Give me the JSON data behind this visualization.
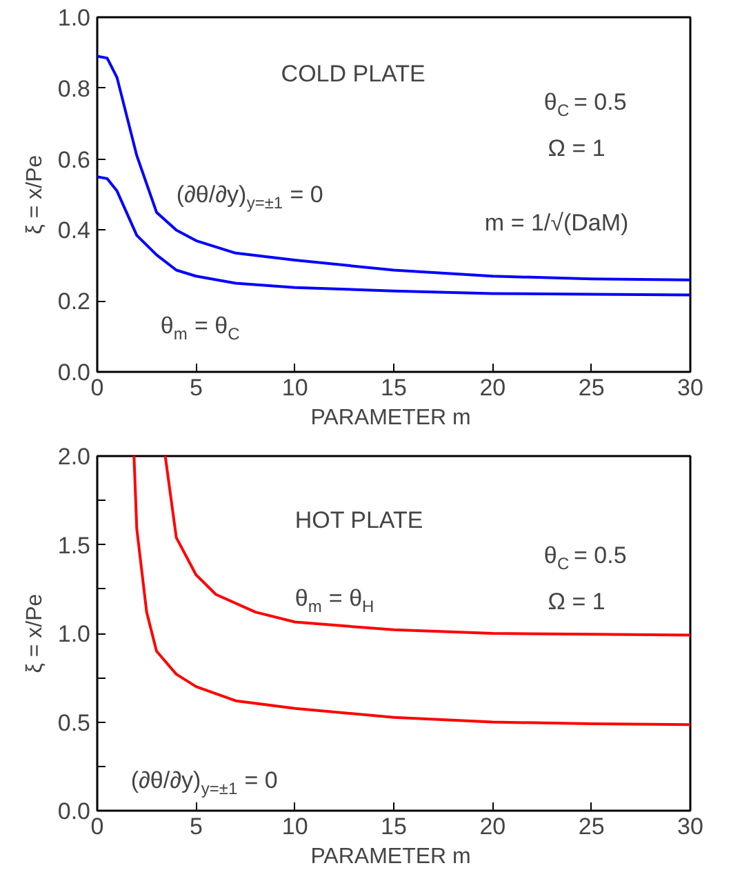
{
  "chart_data": [
    {
      "type": "line",
      "xlabel": "PARAMETER  m",
      "ylabel": "ξ = x/Pe",
      "xlim": [
        0,
        30
      ],
      "ylim": [
        0,
        1.0
      ],
      "xticks": [
        0,
        5,
        10,
        15,
        20,
        25,
        30
      ],
      "yticks": [
        {
          "value": 0,
          "label": "0.0"
        },
        0.2,
        0.4,
        0.6,
        0.8,
        {
          "value": 1,
          "label": "1.0"
        }
      ],
      "grid": false,
      "marker": "none",
      "line_style": "solid",
      "annotations": [
        "COLD  PLATE",
        "θ$_{C}$ = 0.5",
        "Ω = 1",
        "(∂θ/∂y)$_{y=±1}$ = 0",
        "m = 1/√(DaM)",
        "θ$_{m}$ = θ$_{C}$"
      ],
      "series": [
        {
          "color": "#0000ff",
          "x": [
            0,
            0.5,
            1,
            2,
            3,
            4,
            5,
            7,
            10,
            15,
            20,
            25,
            30
          ],
          "values": [
            0.89,
            0.885,
            0.83,
            0.61,
            0.45,
            0.4,
            0.37,
            0.335,
            0.315,
            0.287,
            0.27,
            0.262,
            0.259
          ]
        },
        {
          "color": "#0000ff",
          "x": [
            0,
            0.5,
            1,
            2,
            3,
            4,
            5,
            7,
            10,
            15,
            20,
            25,
            30
          ],
          "values": [
            0.55,
            0.545,
            0.51,
            0.385,
            0.33,
            0.287,
            0.27,
            0.25,
            0.238,
            0.228,
            0.221,
            0.219,
            0.217
          ]
        }
      ]
    },
    {
      "type": "line",
      "xlabel": "PARAMETER  m",
      "ylabel": "ξ = x/Pe",
      "xlim": [
        0,
        30
      ],
      "ylim": [
        0,
        2.0
      ],
      "xticks": [
        0,
        5,
        10,
        15,
        20,
        25,
        30
      ],
      "yticks": [
        {
          "value": 0,
          "label": "0.0"
        },
        {
          "value": 0.25,
          "label": null
        },
        0.5,
        {
          "value": 0.75,
          "label": null
        },
        {
          "value": 1,
          "label": "1.0"
        },
        {
          "value": 1.25,
          "label": null
        },
        1.5,
        {
          "value": 1.75,
          "label": null
        },
        {
          "value": 2,
          "label": "2.0"
        }
      ],
      "grid": false,
      "marker": "none",
      "line_style": "solid",
      "annotations": [
        "HOT  PLATE",
        "θ$_{C}$ = 0.5",
        "Ω = 1",
        "θ$_{m}$ = θ$_{H}$",
        "(∂θ/∂y)$_{y=±1}$ = 0"
      ],
      "series": [
        {
          "color": "#ff0000",
          "x": [
            3.44,
            4,
            5,
            6,
            8,
            10,
            15,
            20,
            25,
            30
          ],
          "values": [
            2.0,
            1.54,
            1.33,
            1.22,
            1.12,
            1.064,
            1.02,
            1.0,
            0.995,
            0.99
          ]
        },
        {
          "color": "#ff0000",
          "x": [
            1.86,
            2,
            2.5,
            3,
            4,
            5,
            7,
            10,
            15,
            20,
            25,
            30
          ],
          "values": [
            2.0,
            1.59,
            1.12,
            0.9,
            0.77,
            0.7,
            0.62,
            0.577,
            0.526,
            0.5,
            0.49,
            0.485
          ]
        }
      ]
    }
  ]
}
